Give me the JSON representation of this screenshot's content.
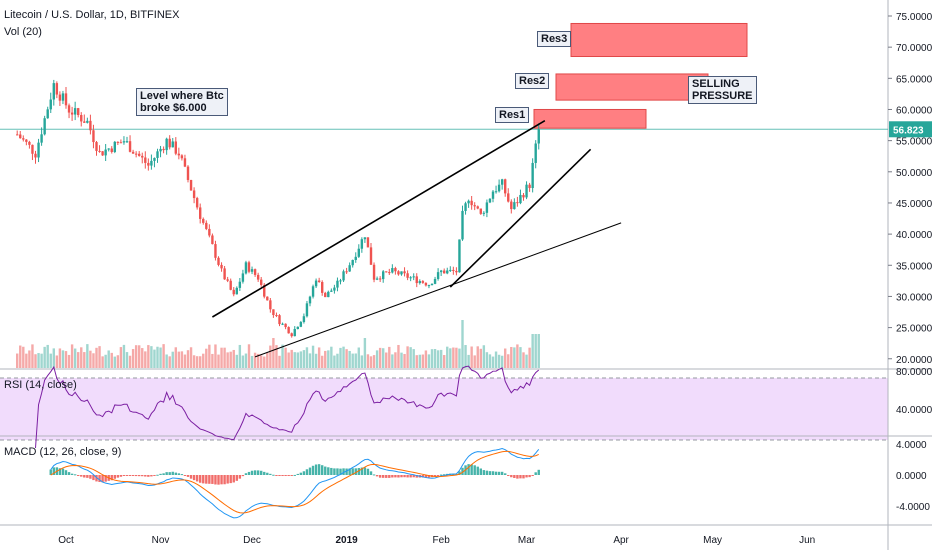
{
  "header": {
    "symbol_line": "Litecoin / U.S. Dollar, 1D, BITFINEX",
    "volume_label": "Vol (20)",
    "rsi_label": "RSI (14, close)",
    "macd_label": "MACD (12, 26, close, 9)"
  },
  "annotations": {
    "btc_note_line1": "Level where Btc",
    "btc_note_line2": "broke $6.000",
    "res1": "Res1",
    "res2": "Res2",
    "res3": "Res3",
    "selling_line1": "SELLING",
    "selling_line2": "PRESSURE"
  },
  "colors": {
    "up": "#26a69a",
    "down": "#ef5350",
    "vol_up": "#9fd6cf",
    "vol_down": "#f5a9a8",
    "rsi_line": "#7b1fa2",
    "rsi_band": "#f1dcfc",
    "macd_line": "#2196f3",
    "signal_line": "#ff6d00",
    "resistance_zone": "#ff7f82",
    "last_price": "#26a69a"
  },
  "chart_data": {
    "type": "candlestick",
    "symbol": "LTCUSD",
    "interval": "1D",
    "exchange": "BITFINEX",
    "last_price": "56.823",
    "price_axis": {
      "ticks": [
        "75.0000",
        "70.0000",
        "65.0000",
        "60.0000",
        "55.0000",
        "50.0000",
        "45.0000",
        "40.0000",
        "35.0000",
        "30.0000",
        "25.0000",
        "20.0000"
      ],
      "range": [
        19,
        77
      ]
    },
    "rsi_axis": {
      "ticks": [
        "80.0000",
        "40.0000"
      ],
      "upper_band": 70,
      "lower_band": 30
    },
    "macd_axis": {
      "ticks": [
        "4.0000",
        "0.0000",
        "-4.0000"
      ]
    },
    "time_axis": [
      "Oct",
      "Nov",
      "Dec",
      "2019",
      "Feb",
      "Mar",
      "Apr",
      "May",
      "Jun"
    ],
    "close_path": [
      {
        "date": "2018-09-15",
        "close": 56
      },
      {
        "date": "2018-09-21",
        "close": 53
      },
      {
        "date": "2018-09-27",
        "close": 64
      },
      {
        "date": "2018-10-02",
        "close": 60
      },
      {
        "date": "2018-10-08",
        "close": 58
      },
      {
        "date": "2018-10-12",
        "close": 53
      },
      {
        "date": "2018-10-20",
        "close": 55
      },
      {
        "date": "2018-10-28",
        "close": 51
      },
      {
        "date": "2018-11-03",
        "close": 55
      },
      {
        "date": "2018-11-07",
        "close": 53
      },
      {
        "date": "2018-11-14",
        "close": 43
      },
      {
        "date": "2018-11-18",
        "close": 38
      },
      {
        "date": "2018-11-21",
        "close": 34
      },
      {
        "date": "2018-11-25",
        "close": 30
      },
      {
        "date": "2018-11-29",
        "close": 35
      },
      {
        "date": "2018-12-03",
        "close": 33
      },
      {
        "date": "2018-12-07",
        "close": 28
      },
      {
        "date": "2018-12-10",
        "close": 26
      },
      {
        "date": "2018-12-14",
        "close": 24
      },
      {
        "date": "2018-12-18",
        "close": 27
      },
      {
        "date": "2018-12-22",
        "close": 33
      },
      {
        "date": "2018-12-25",
        "close": 30
      },
      {
        "date": "2018-12-29",
        "close": 32
      },
      {
        "date": "2019-01-03",
        "close": 36
      },
      {
        "date": "2019-01-07",
        "close": 40
      },
      {
        "date": "2019-01-10",
        "close": 33
      },
      {
        "date": "2019-01-16",
        "close": 34
      },
      {
        "date": "2019-01-22",
        "close": 33
      },
      {
        "date": "2019-01-28",
        "close": 32
      },
      {
        "date": "2019-02-01",
        "close": 34
      },
      {
        "date": "2019-02-06",
        "close": 34
      },
      {
        "date": "2019-02-08",
        "close": 43
      },
      {
        "date": "2019-02-10",
        "close": 46
      },
      {
        "date": "2019-02-14",
        "close": 43
      },
      {
        "date": "2019-02-18",
        "close": 47
      },
      {
        "date": "2019-02-21",
        "close": 48
      },
      {
        "date": "2019-02-24",
        "close": 44
      },
      {
        "date": "2019-02-27",
        "close": 46
      },
      {
        "date": "2019-03-02",
        "close": 48
      },
      {
        "date": "2019-03-05",
        "close": 56.8
      }
    ]
  }
}
